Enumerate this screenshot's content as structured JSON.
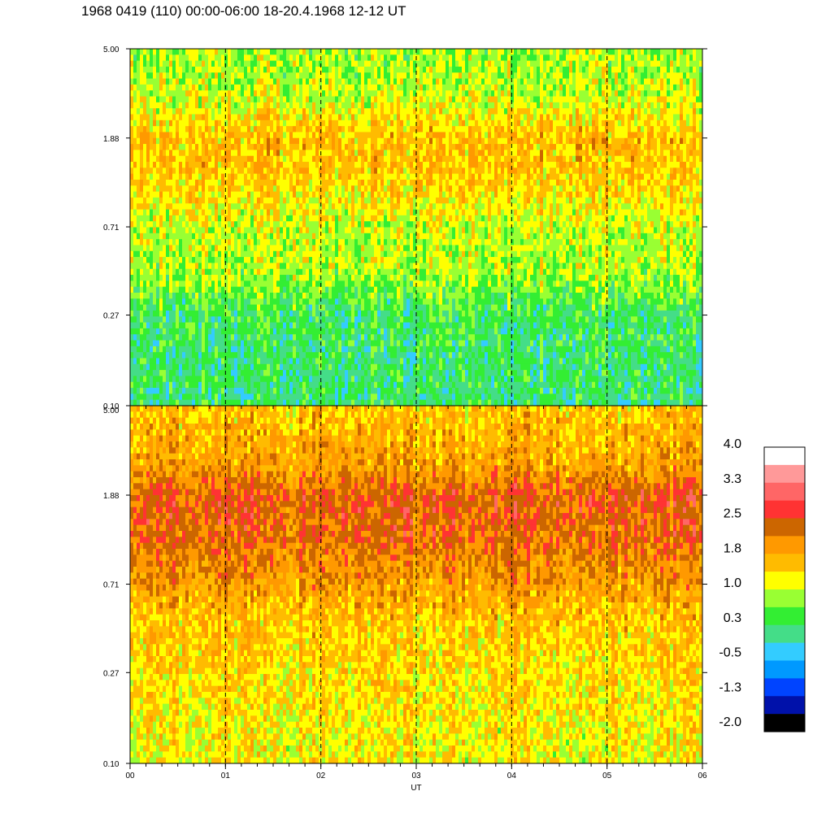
{
  "title": "1968 0419 (110) 00:00-06:00 18-20.4.1968  12-12 UT",
  "chart_data": {
    "type": "heatmap",
    "title": "1968 0419 (110) 00:00-06:00 18-20.4.1968  12-12 UT",
    "xlabel": "UT",
    "x_ticks": [
      "00",
      "01",
      "02",
      "03",
      "04",
      "05",
      "06"
    ],
    "xlim": [
      0,
      6
    ],
    "y_scale": "log",
    "ylim": [
      0.1,
      5.0
    ],
    "y_ticks": [
      "5.00",
      "1.88",
      "0.71",
      "0.27",
      "0.10"
    ],
    "grid_x_dashed_at": [
      1,
      2,
      3,
      4,
      5
    ],
    "panels": [
      {
        "panel": "top",
        "profile": [
          {
            "y": 5.0,
            "level": 0.8
          },
          {
            "y": 3.0,
            "level": 1.0
          },
          {
            "y": 1.88,
            "level": 1.6
          },
          {
            "y": 1.2,
            "level": 1.5
          },
          {
            "y": 0.71,
            "level": 1.0
          },
          {
            "y": 0.45,
            "level": 0.9
          },
          {
            "y": 0.27,
            "level": 0.3
          },
          {
            "y": 0.1,
            "level": 0.2
          }
        ]
      },
      {
        "panel": "bottom",
        "profile": [
          {
            "y": 5.0,
            "level": 1.5
          },
          {
            "y": 2.5,
            "level": 1.9
          },
          {
            "y": 1.88,
            "level": 2.4
          },
          {
            "y": 1.2,
            "level": 2.3
          },
          {
            "y": 0.71,
            "level": 1.9
          },
          {
            "y": 0.45,
            "level": 1.5
          },
          {
            "y": 0.27,
            "level": 1.4
          },
          {
            "y": 0.1,
            "level": 1.2
          }
        ]
      }
    ],
    "colorbar": {
      "labels": [
        "4.0",
        "3.3",
        "2.5",
        "1.8",
        "1.0",
        "0.3",
        "-0.5",
        "-1.3",
        "-2.0"
      ],
      "range": [
        -2.0,
        4.0
      ],
      "colors": [
        "#ffffff",
        "#ff9999",
        "#ff6666",
        "#ff3333",
        "#cc6600",
        "#ff9900",
        "#ffbb00",
        "#ffff00",
        "#99ff33",
        "#33ee33",
        "#44dd88",
        "#33ccff",
        "#0099ff",
        "#0044ff",
        "#0011aa",
        "#000000"
      ]
    }
  }
}
